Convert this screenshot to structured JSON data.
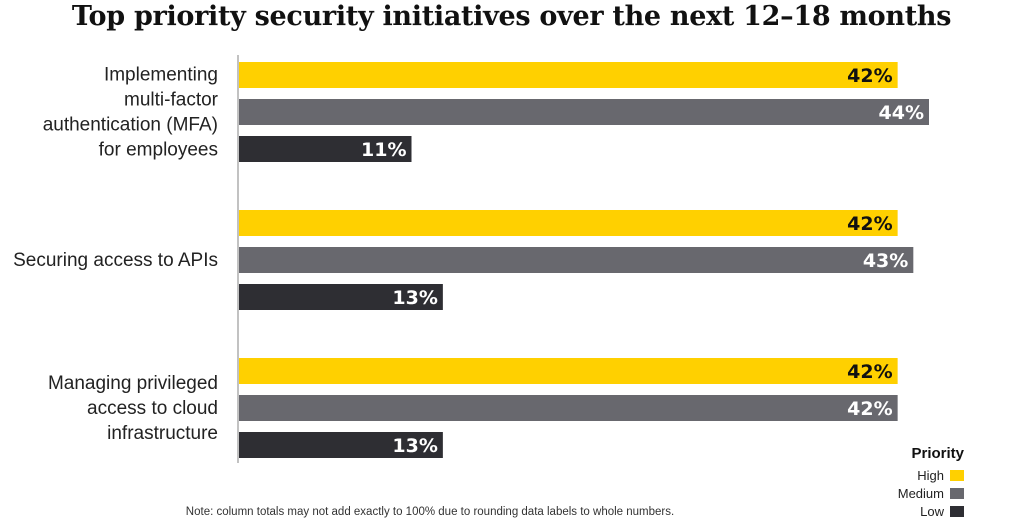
{
  "chart_data": {
    "type": "bar",
    "orientation": "horizontal",
    "title": "Top priority security initiatives over the next 12–18 months",
    "categories": [
      [
        "Implementing",
        "multi-factor",
        "authentication (MFA)",
        "for employees"
      ],
      [
        "Securing access to APIs"
      ],
      [
        "Managing privileged",
        "access to cloud",
        "infrastructure"
      ]
    ],
    "series": [
      {
        "name": "High",
        "color": "#FFD000",
        "label_color": "#111111",
        "values": [
          42,
          42,
          42
        ],
        "labels": [
          "42%",
          "42%",
          "42%"
        ]
      },
      {
        "name": "Medium",
        "color": "#68686E",
        "label_color": "#ffffff",
        "values": [
          44,
          43,
          42
        ],
        "labels": [
          "44%",
          "43%",
          "42%"
        ]
      },
      {
        "name": "Low",
        "color": "#2E2E33",
        "label_color": "#ffffff",
        "values": [
          11,
          13,
          13
        ],
        "labels": [
          "11%",
          "13%",
          "13%"
        ]
      }
    ],
    "legend_title": "Priority",
    "legend_position": "bottom-right",
    "xlim": [
      0,
      44
    ],
    "grid": false
  },
  "note": "Note: column totals may not add exactly to 100% due to rounding data labels to whole numbers."
}
